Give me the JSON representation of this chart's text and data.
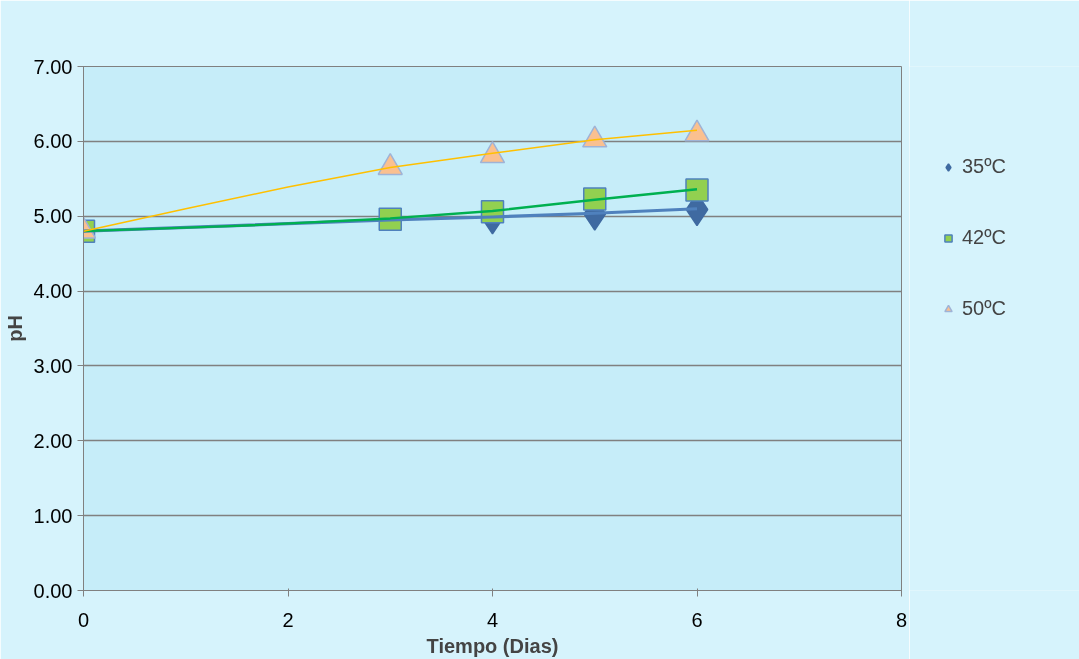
{
  "chart_data": {
    "type": "scatter",
    "xlabel": "Tiempo (Dias)",
    "ylabel": "pH",
    "xlim": [
      0,
      8
    ],
    "xticks": [
      0,
      2,
      4,
      6,
      8
    ],
    "ylim": [
      0,
      7
    ],
    "yticks": [
      {
        "value": 0,
        "label": "0.00"
      },
      {
        "value": 1,
        "label": "1.00"
      },
      {
        "value": 2,
        "label": "2.00"
      },
      {
        "value": 3,
        "label": "3.00"
      },
      {
        "value": 4,
        "label": "4.00"
      },
      {
        "value": 5,
        "label": "5.00"
      },
      {
        "value": 6,
        "label": "6.00"
      },
      {
        "value": 7,
        "label": "7.00"
      }
    ],
    "grid": "y",
    "legend": "right",
    "series": [
      {
        "type": "line",
        "color": "#4f81bd",
        "line_style": "solid",
        "marker": "none",
        "x": [
          0,
          3,
          4,
          5,
          6
        ],
        "values": [
          4.8,
          4.95,
          4.99,
          5.04,
          5.1
        ]
      },
      {
        "type": "line",
        "color": "#00b050",
        "line_style": "solid",
        "marker": "none",
        "x": [
          0,
          1.5,
          3,
          4,
          5,
          6
        ],
        "values": [
          4.8,
          4.87,
          4.97,
          5.07,
          5.22,
          5.36
        ]
      },
      {
        "type": "line",
        "color": "#ffc000",
        "line_style": "solid",
        "marker": "none",
        "x": [
          0,
          1,
          2,
          3,
          4,
          5,
          6
        ],
        "values": [
          4.8,
          5.1,
          5.39,
          5.65,
          5.84,
          6.02,
          6.15
        ]
      },
      {
        "name": "35ºC",
        "color": "#3f6aa1",
        "marker": "diamond",
        "x": [
          4,
          5,
          6
        ],
        "values": [
          4.98,
          5.03,
          5.09
        ]
      },
      {
        "name": "42ºC",
        "color": "#92d050",
        "marker": "square",
        "x": [
          0,
          3,
          4,
          5,
          6
        ],
        "values": [
          4.8,
          4.96,
          5.06,
          5.23,
          5.35
        ]
      },
      {
        "name": "50ºC",
        "color": "#fac090",
        "marker": "triangle",
        "x": [
          0,
          3,
          4,
          5,
          6
        ],
        "values": [
          4.8,
          5.65,
          5.81,
          6.02,
          6.1
        ]
      }
    ]
  }
}
